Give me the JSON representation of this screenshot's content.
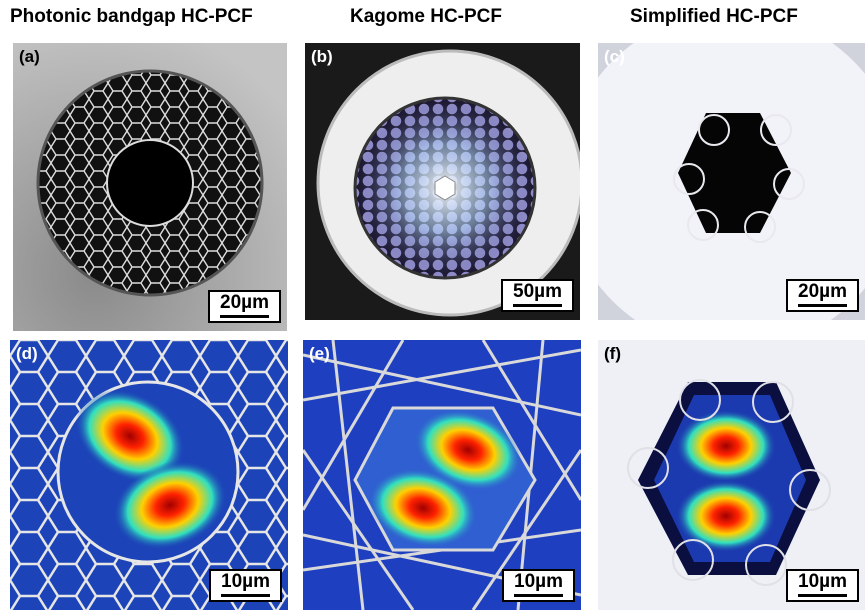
{
  "columns": [
    {
      "title": "Photonic bandgap HC-PCF"
    },
    {
      "title": "Kagome HC-PCF"
    },
    {
      "title": "Simplified HC-PCF"
    }
  ],
  "panels": [
    {
      "label": "(a)",
      "scale": "20µm"
    },
    {
      "label": "(b)",
      "scale": "50µm"
    },
    {
      "label": "(c)",
      "scale": "20µm"
    },
    {
      "label": "(d)",
      "scale": "10µm"
    },
    {
      "label": "(e)",
      "scale": "10µm"
    },
    {
      "label": "(f)",
      "scale": "10µm"
    }
  ]
}
